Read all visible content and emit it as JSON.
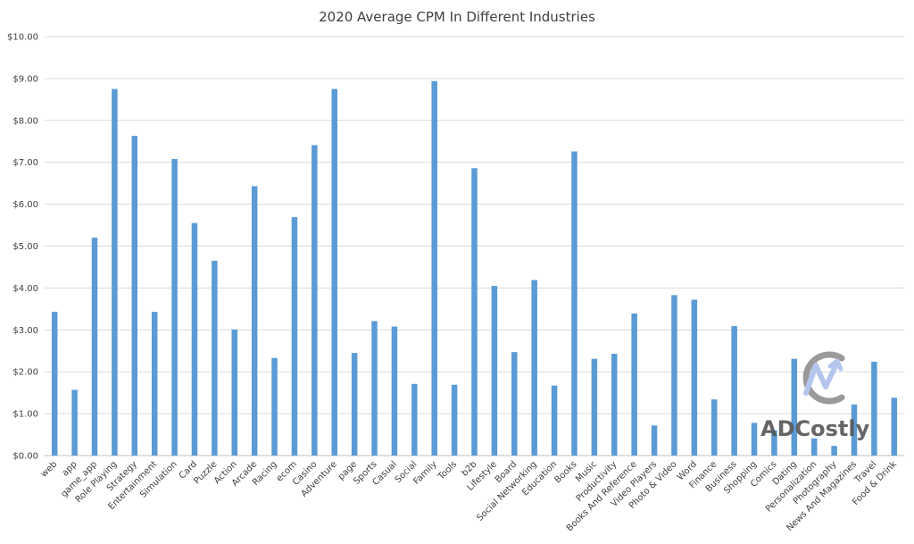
{
  "chart_data": {
    "type": "bar",
    "title": "2020 Average CPM In Different Industries",
    "xlabel": "",
    "ylabel": "",
    "ylim": [
      0,
      10
    ],
    "y_ticks": [
      "$0.00",
      "$1.00",
      "$2.00",
      "$3.00",
      "$4.00",
      "$5.00",
      "$6.00",
      "$7.00",
      "$8.00",
      "$9.00",
      "$10.00"
    ],
    "grid": true,
    "bar_color": "#5b9bd5",
    "categories": [
      "web",
      "app",
      "game_app",
      "Role Playing",
      "Strategy",
      "Entertainment",
      "Simulation",
      "Card",
      "Puzzle",
      "Action",
      "Arcade",
      "Racing",
      "ecom",
      "Casino",
      "Adventure",
      "page",
      "Sports",
      "Casual",
      "Social",
      "Family",
      "Tools",
      "b2b",
      "Lifestyle",
      "Board",
      "Social Networking",
      "Education",
      "Books",
      "Music",
      "Productivity",
      "Books And Reference",
      "Video Players",
      "Photo & Video",
      "Word",
      "Finance",
      "Business",
      "Shopping",
      "Comics",
      "Dating",
      "Personalization",
      "Photography",
      "News And Magazines",
      "Travel",
      "Food & Drink"
    ],
    "values": [
      3.43,
      1.57,
      5.2,
      8.75,
      7.63,
      3.43,
      7.08,
      5.55,
      4.65,
      3.01,
      6.43,
      2.33,
      5.69,
      7.41,
      8.75,
      2.45,
      3.21,
      3.08,
      1.71,
      8.94,
      1.69,
      6.86,
      4.05,
      2.47,
      4.19,
      1.67,
      7.26,
      2.31,
      2.43,
      3.39,
      0.72,
      3.83,
      3.72,
      1.34,
      3.09,
      0.78,
      0.6,
      2.31,
      0.41,
      0.23,
      1.22,
      2.24,
      1.38
    ]
  },
  "watermark": {
    "text": "ADCostly",
    "icon": "adcostly-logo-icon",
    "color": "#5a5a5a"
  }
}
